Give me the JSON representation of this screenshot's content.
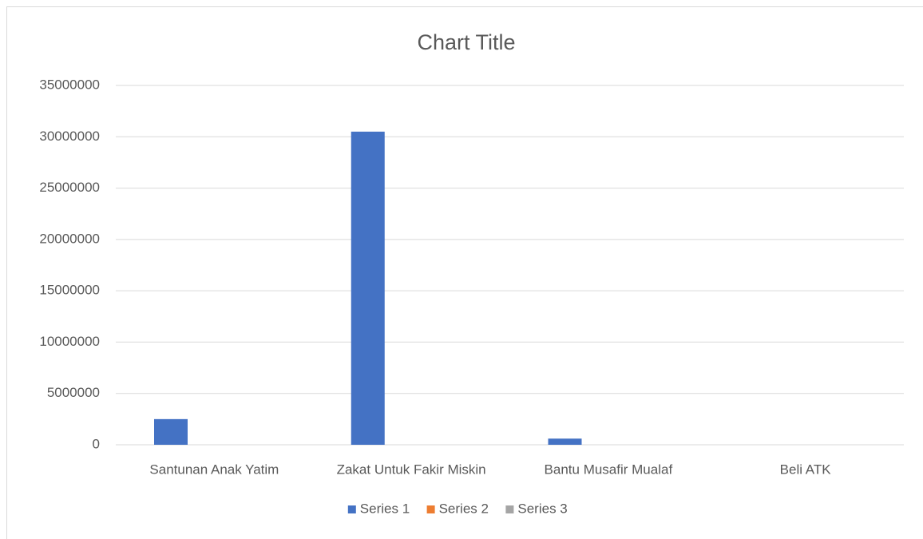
{
  "chart_data": {
    "type": "bar",
    "title": "Chart Title",
    "categories": [
      "Santunan Anak Yatim",
      "Zakat Untuk Fakir Miskin",
      "Bantu Musafir Mualaf",
      "Beli ATK"
    ],
    "series": [
      {
        "name": "Series 1",
        "color": "#4472c4",
        "values": [
          2500000,
          30500000,
          600000,
          0
        ]
      },
      {
        "name": "Series 2",
        "color": "#ed7d31",
        "values": [
          0,
          0,
          0,
          0
        ]
      },
      {
        "name": "Series 3",
        "color": "#a5a5a5",
        "values": [
          0,
          0,
          0,
          0
        ]
      }
    ],
    "ylim": [
      0,
      35000000
    ],
    "yticks": [
      0,
      5000000,
      10000000,
      15000000,
      20000000,
      25000000,
      30000000,
      35000000
    ],
    "grid": true,
    "legend": "bottom"
  }
}
